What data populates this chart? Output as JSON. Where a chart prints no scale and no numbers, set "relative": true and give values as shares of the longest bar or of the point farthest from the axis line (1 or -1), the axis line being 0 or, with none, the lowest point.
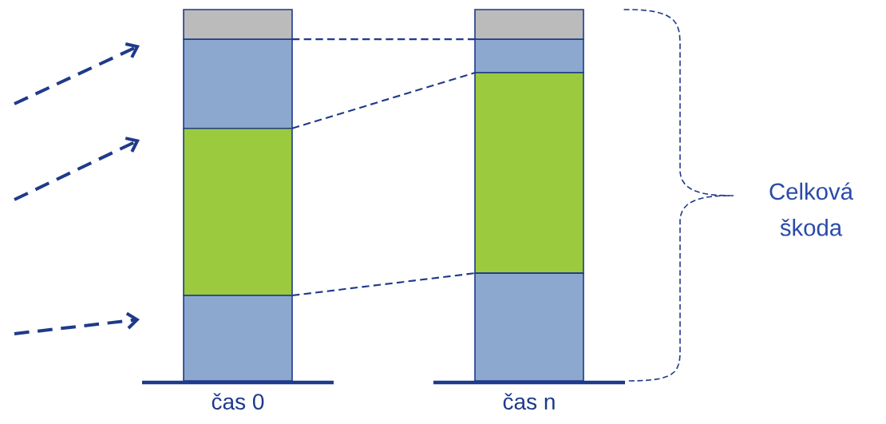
{
  "chart_data": {
    "type": "bar",
    "stacked": true,
    "relative": true,
    "categories": [
      "čas 0",
      "čas n"
    ],
    "series": [
      {
        "color": "#8ca8cf",
        "values": [
          0.23,
          0.29
        ]
      },
      {
        "color": "#9bca3e",
        "values": [
          0.45,
          0.54
        ]
      },
      {
        "color": "#8ca8cf",
        "values": [
          0.24,
          0.09
        ]
      },
      {
        "color": "#bbbbbb",
        "values": [
          0.08,
          0.08
        ]
      }
    ],
    "annotations": [
      "Celková škoda"
    ]
  }
}
